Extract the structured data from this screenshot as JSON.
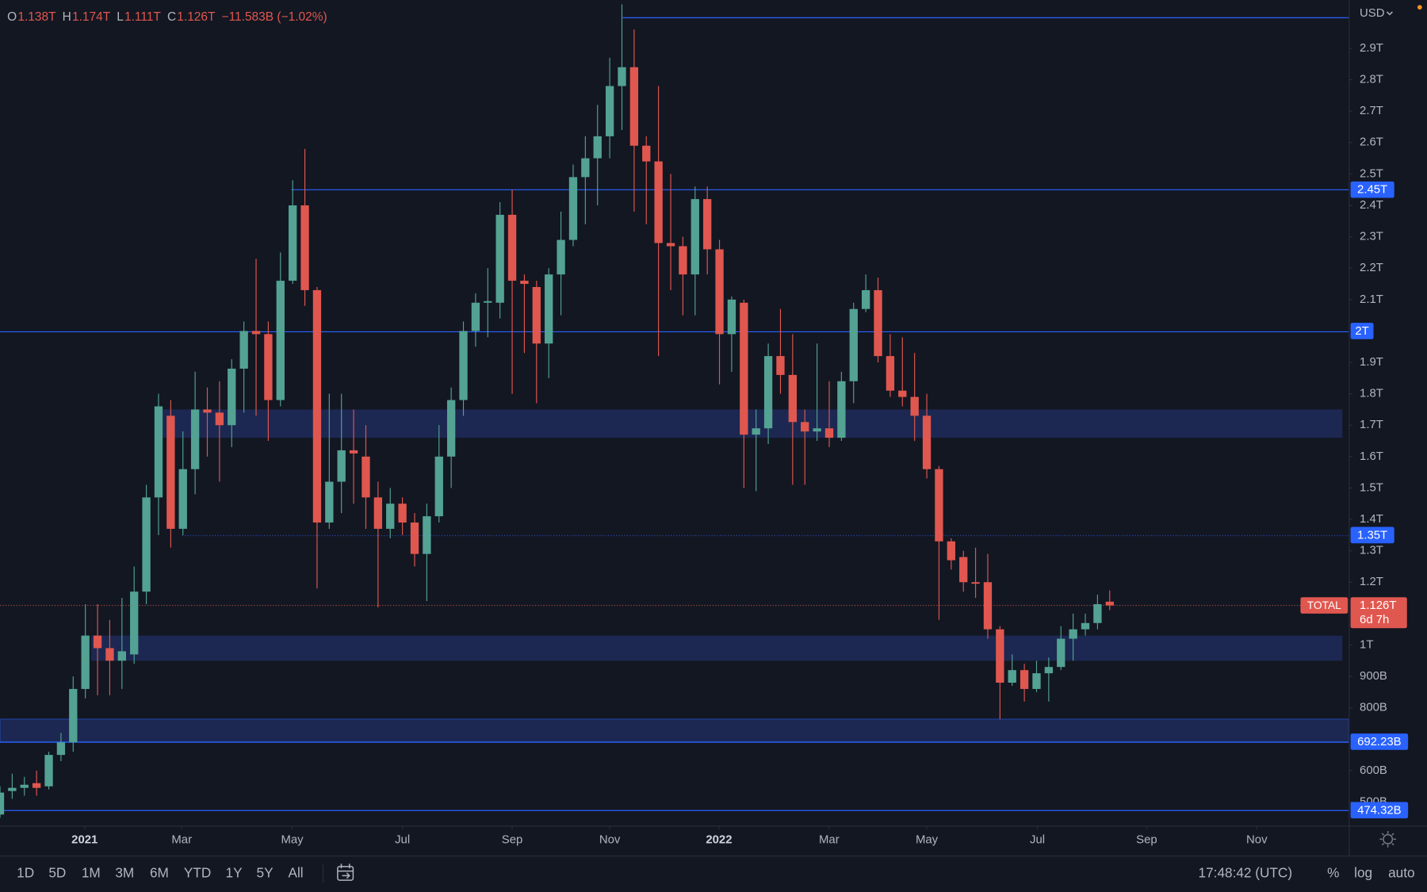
{
  "chart_data": {
    "type": "candlestick",
    "header": [
      {
        "key": "O",
        "value": "1.138T"
      },
      {
        "key": "H",
        "value": "1.174T"
      },
      {
        "key": "L",
        "value": "1.111T"
      },
      {
        "key": "C",
        "value": "1.126T"
      }
    ],
    "change": "−11.583B (−1.02%)",
    "currency": "USD",
    "up_color": "#53a293",
    "down_color": "#e0574f",
    "open": [
      0.46,
      0.535,
      0.545,
      0.56,
      0.55,
      0.65,
      0.69,
      0.86,
      1.03,
      0.99,
      0.95,
      0.97,
      1.17,
      1.47,
      1.73,
      1.37,
      1.56,
      1.75,
      1.74,
      1.7,
      1.88,
      2.0,
      1.99,
      1.78,
      2.16,
      2.4,
      2.13,
      1.39,
      1.52,
      1.62,
      1.6,
      1.47,
      1.37,
      1.45,
      1.39,
      1.29,
      1.41,
      1.6,
      1.78,
      2.0,
      2.09,
      2.09,
      2.37,
      2.16,
      2.14,
      1.96,
      2.18,
      2.29,
      2.49,
      2.55,
      2.62,
      2.78,
      2.84,
      2.59,
      2.54,
      2.28,
      2.27,
      2.18,
      2.42,
      2.26,
      1.99,
      2.09,
      1.67,
      1.69,
      1.92,
      1.86,
      1.71,
      1.68,
      1.69,
      1.66,
      1.84,
      2.07,
      2.13,
      1.92,
      1.81,
      1.79,
      1.73,
      1.56,
      1.33,
      1.28,
      1.2,
      1.2,
      1.05,
      0.88,
      0.92,
      0.86,
      0.91,
      0.93,
      1.02,
      1.05,
      1.07,
      1.138
    ],
    "high": [
      0.55,
      0.59,
      0.58,
      0.6,
      0.66,
      0.72,
      0.9,
      1.13,
      1.13,
      1.08,
      1.15,
      1.25,
      1.51,
      1.8,
      1.78,
      1.68,
      1.87,
      1.82,
      1.84,
      1.91,
      2.03,
      2.23,
      2.03,
      2.25,
      2.48,
      2.58,
      2.14,
      1.8,
      1.8,
      1.75,
      1.7,
      1.52,
      1.5,
      1.47,
      1.42,
      1.45,
      1.7,
      1.82,
      2.03,
      2.12,
      2.2,
      2.41,
      2.45,
      2.18,
      2.16,
      2.2,
      2.38,
      2.53,
      2.62,
      2.72,
      2.87,
      3.04,
      2.96,
      2.62,
      2.78,
      2.5,
      2.3,
      2.46,
      2.46,
      2.29,
      2.11,
      2.1,
      1.75,
      1.96,
      2.07,
      1.99,
      1.75,
      1.96,
      1.84,
      1.87,
      2.09,
      2.18,
      2.17,
      1.99,
      1.98,
      1.93,
      1.8,
      1.57,
      1.34,
      1.3,
      1.31,
      1.29,
      1.06,
      0.97,
      0.94,
      0.95,
      0.96,
      1.06,
      1.1,
      1.1,
      1.16,
      1.174
    ],
    "low": [
      0.45,
      0.51,
      0.52,
      0.52,
      0.54,
      0.63,
      0.66,
      0.83,
      0.84,
      0.84,
      0.86,
      0.94,
      1.13,
      1.35,
      1.31,
      1.35,
      1.48,
      1.6,
      1.52,
      1.63,
      1.74,
      1.73,
      1.65,
      1.76,
      2.15,
      2.08,
      1.18,
      1.37,
      1.42,
      1.45,
      1.37,
      1.12,
      1.34,
      1.35,
      1.25,
      1.14,
      1.39,
      1.5,
      1.73,
      1.95,
      1.98,
      2.04,
      1.8,
      1.93,
      1.77,
      1.85,
      2.05,
      2.27,
      2.34,
      2.4,
      2.55,
      2.64,
      2.38,
      2.34,
      1.92,
      2.13,
      2.05,
      2.05,
      2.18,
      1.83,
      1.87,
      1.5,
      1.49,
      1.64,
      1.8,
      1.51,
      1.51,
      1.65,
      1.63,
      1.65,
      1.77,
      2.06,
      1.9,
      1.79,
      1.76,
      1.65,
      1.53,
      1.08,
      1.24,
      1.17,
      1.15,
      1.02,
      0.764,
      0.87,
      0.82,
      0.85,
      0.82,
      0.92,
      0.95,
      1.03,
      1.05,
      1.111
    ],
    "close": [
      0.53,
      0.545,
      0.555,
      0.545,
      0.65,
      0.69,
      0.86,
      1.03,
      0.99,
      0.95,
      0.98,
      1.17,
      1.47,
      1.76,
      1.37,
      1.56,
      1.75,
      1.74,
      1.7,
      1.88,
      2.0,
      1.99,
      1.78,
      2.16,
      2.4,
      2.13,
      1.39,
      1.52,
      1.62,
      1.61,
      1.47,
      1.37,
      1.45,
      1.39,
      1.29,
      1.41,
      1.6,
      1.78,
      2.0,
      2.09,
      2.095,
      2.37,
      2.16,
      2.15,
      1.96,
      2.18,
      2.29,
      2.49,
      2.55,
      2.62,
      2.78,
      2.84,
      2.59,
      2.54,
      2.28,
      2.27,
      2.18,
      2.42,
      2.26,
      1.99,
      2.1,
      1.67,
      1.69,
      1.92,
      1.86,
      1.71,
      1.68,
      1.69,
      1.66,
      1.84,
      2.07,
      2.13,
      1.92,
      1.81,
      1.79,
      1.73,
      1.56,
      1.33,
      1.27,
      1.2,
      1.195,
      1.05,
      0.88,
      0.92,
      0.86,
      0.91,
      0.93,
      1.02,
      1.05,
      1.07,
      1.13,
      1.126
    ],
    "xlim": [
      0,
      110.6
    ],
    "xticks": [
      {
        "value": 6.94,
        "label": "2021"
      },
      {
        "value": 14.9,
        "label": "Mar"
      },
      {
        "value": 23.96,
        "label": "May"
      },
      {
        "value": 33.0,
        "label": "Jul"
      },
      {
        "value": 42.0,
        "label": "Sep"
      },
      {
        "value": 50.0,
        "label": "Nov"
      },
      {
        "value": 58.96,
        "label": "2022"
      },
      {
        "value": 67.99,
        "label": "Mar"
      },
      {
        "value": 76.0,
        "label": "May"
      },
      {
        "value": 85.07,
        "label": "Jul"
      },
      {
        "value": 94.03,
        "label": "Sep"
      },
      {
        "value": 103.06,
        "label": "Nov"
      }
    ],
    "ylim": [
      0.425,
      3.054
    ],
    "yticks": [
      {
        "value": 2.9,
        "label": "2.9T"
      },
      {
        "value": 2.8,
        "label": "2.8T"
      },
      {
        "value": 2.7,
        "label": "2.7T"
      },
      {
        "value": 2.6,
        "label": "2.6T"
      },
      {
        "value": 2.5,
        "label": "2.5T"
      },
      {
        "value": 2.4,
        "label": "2.4T"
      },
      {
        "value": 2.3,
        "label": "2.3T"
      },
      {
        "value": 2.2,
        "label": "2.2T"
      },
      {
        "value": 2.1,
        "label": "2.1T"
      },
      {
        "value": 1.9,
        "label": "1.9T"
      },
      {
        "value": 1.8,
        "label": "1.8T"
      },
      {
        "value": 1.7,
        "label": "1.7T"
      },
      {
        "value": 1.6,
        "label": "1.6T"
      },
      {
        "value": 1.5,
        "label": "1.5T"
      },
      {
        "value": 1.4,
        "label": "1.4T"
      },
      {
        "value": 1.3,
        "label": "1.3T"
      },
      {
        "value": 1.2,
        "label": "1.2T"
      },
      {
        "value": 1.0,
        "label": "1T"
      },
      {
        "value": 0.9,
        "label": "900B"
      },
      {
        "value": 0.8,
        "label": "800B"
      },
      {
        "value": 0.6,
        "label": "600B"
      },
      {
        "value": 0.5,
        "label": "500B"
      }
    ],
    "grid": false,
    "levels": [
      {
        "value": 3.0
      },
      {
        "value": 2.45,
        "label": "2.45T"
      },
      {
        "value": 2.0,
        "label": "2T"
      },
      {
        "value": 1.35,
        "label": "1.35T",
        "style": "dotted"
      },
      {
        "value": 0.692,
        "label": "692.23B"
      },
      {
        "value": 0.474,
        "label": "474.32B"
      }
    ],
    "level_color": "#2962ff",
    "zones": [
      [
        1.66,
        1.75
      ],
      [
        0.95,
        1.03
      ],
      [
        0.692,
        0.764
      ]
    ],
    "price_tag": {
      "symbol": "TOTAL",
      "value": 1.126,
      "label": "1.126T",
      "countdown": "6d 7h"
    },
    "toolbar": {
      "ranges": [
        "1D",
        "5D",
        "1M",
        "3M",
        "6M",
        "YTD",
        "1Y",
        "5Y",
        "All"
      ],
      "clock": "17:48:42 (UTC)",
      "options": [
        "%",
        "log",
        "auto"
      ]
    }
  }
}
